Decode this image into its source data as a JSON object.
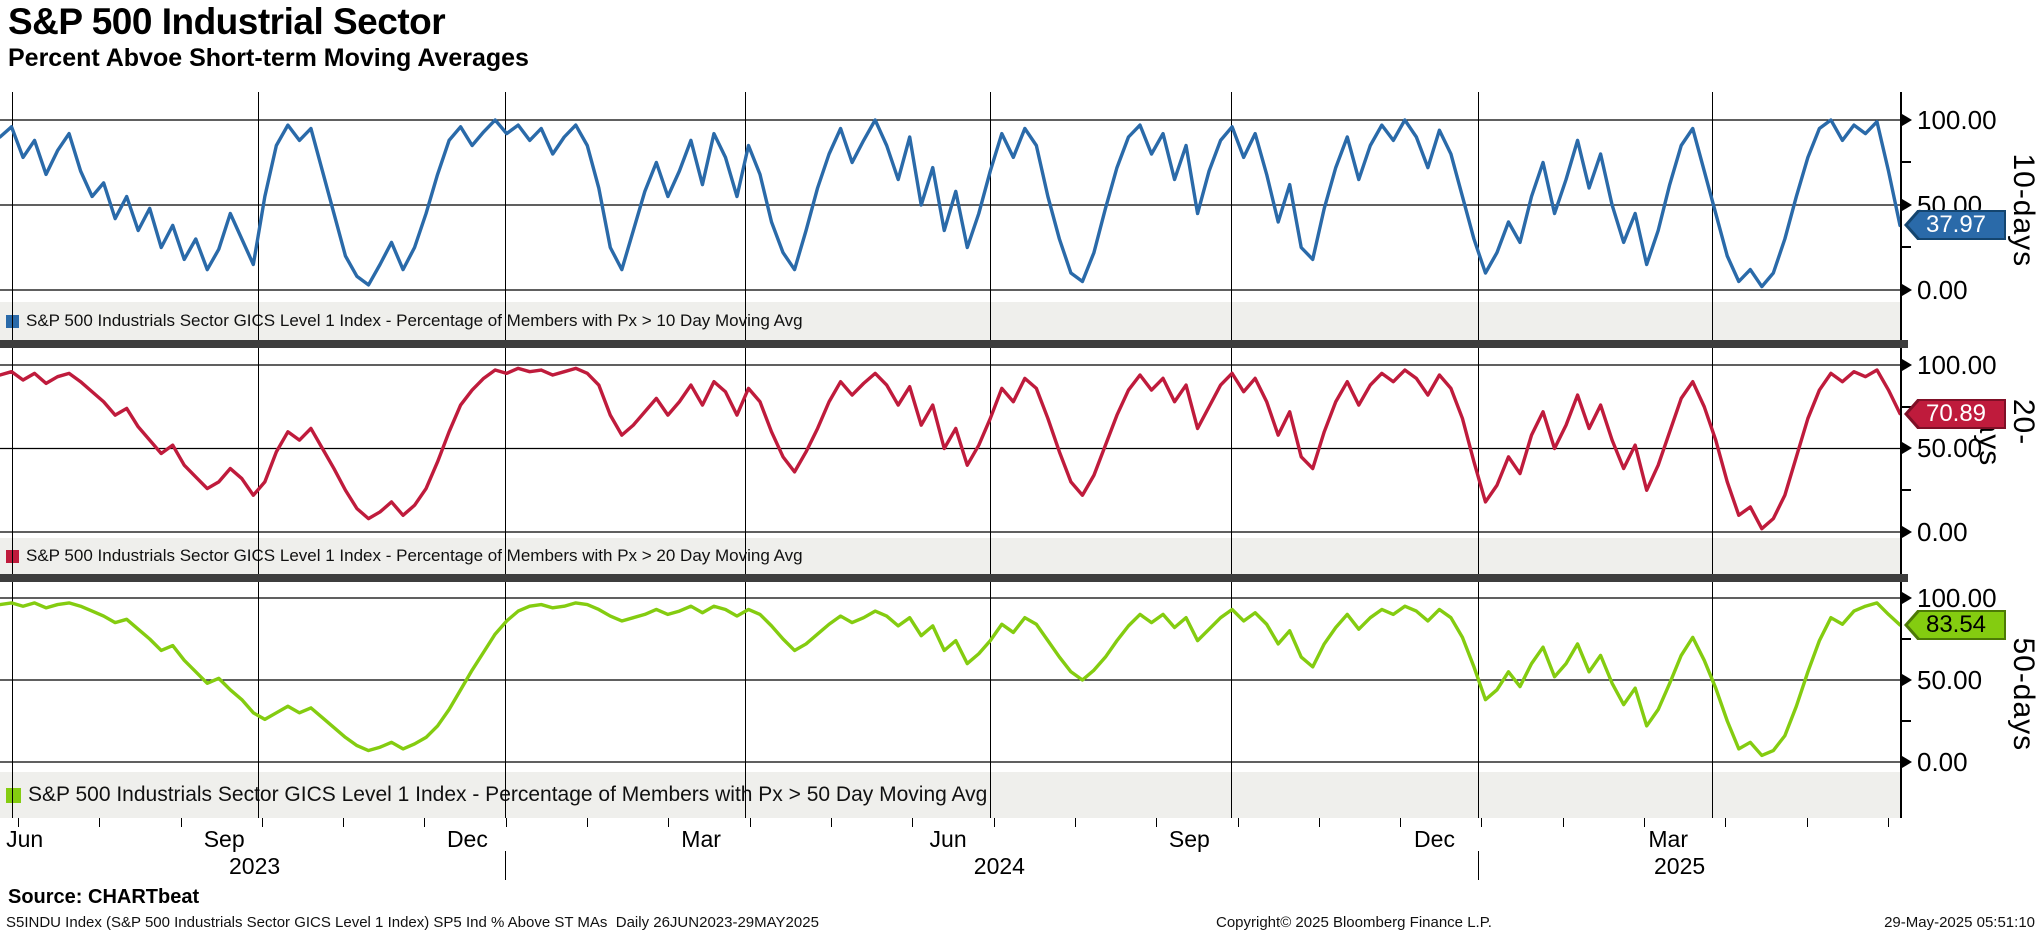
{
  "header": {
    "title": "S&P 500 Industrial Sector",
    "subtitle": "Percent Abvoe Short-term Moving Averages"
  },
  "chart_data": {
    "type": "line",
    "title": "S&P 500 Industrial Sector",
    "subtitle": "Percent Abvoe Short-term Moving Averages",
    "x_start": "26JUN2023",
    "x_end": "29MAY2025",
    "frequency": "Daily",
    "ylim": [
      0,
      100
    ],
    "y_tick_labels": [
      "100.00",
      "50.00",
      "0.00"
    ],
    "grid": true,
    "x_gridlines_pct": [
      13.6,
      26.6,
      39.2,
      52.1,
      64.8,
      77.8,
      90.1
    ],
    "panels": [
      {
        "name": "10-days",
        "legend": "S&P 500 Industrials Sector GICS Level 1 Index - Percentage of Members with Px > 10 Day Moving Avg",
        "color": "#2a6aa9",
        "badge_border": "#14456f",
        "badge_text_color": "#ffffff",
        "last_value": "37.97",
        "values": [
          90,
          96,
          78,
          88,
          68,
          82,
          92,
          70,
          55,
          63,
          42,
          55,
          35,
          48,
          25,
          38,
          18,
          30,
          12,
          24,
          45,
          30,
          15,
          55,
          85,
          97,
          88,
          95,
          70,
          45,
          20,
          8,
          3,
          15,
          28,
          12,
          25,
          45,
          68,
          88,
          96,
          85,
          93,
          100,
          92,
          97,
          88,
          95,
          80,
          90,
          97,
          85,
          60,
          25,
          12,
          35,
          58,
          75,
          55,
          70,
          88,
          62,
          92,
          78,
          55,
          85,
          68,
          40,
          22,
          12,
          35,
          60,
          80,
          95,
          75,
          88,
          100,
          85,
          65,
          90,
          50,
          72,
          35,
          58,
          25,
          45,
          70,
          92,
          78,
          95,
          85,
          55,
          30,
          10,
          5,
          22,
          48,
          72,
          90,
          97,
          80,
          92,
          65,
          85,
          45,
          70,
          88,
          96,
          78,
          92,
          68,
          40,
          62,
          25,
          18,
          48,
          72,
          90,
          65,
          85,
          97,
          88,
          100,
          90,
          72,
          94,
          80,
          55,
          30,
          10,
          22,
          40,
          28,
          55,
          75,
          45,
          65,
          88,
          60,
          80,
          50,
          28,
          45,
          15,
          35,
          62,
          85,
          95,
          70,
          45,
          20,
          5,
          12,
          2,
          10,
          30,
          55,
          78,
          95,
          100,
          88,
          97,
          92,
          99,
          70,
          37.97
        ]
      },
      {
        "name": "20-days",
        "legend": "S&P 500 Industrials Sector GICS Level 1 Index - Percentage of Members with Px > 20 Day Moving Avg",
        "color": "#bf1b3c",
        "badge_border": "#7e0f26",
        "badge_text_color": "#ffffff",
        "last_value": "70.89",
        "values": [
          94,
          96,
          91,
          95,
          89,
          93,
          95,
          90,
          84,
          78,
          70,
          74,
          63,
          55,
          47,
          52,
          40,
          33,
          26,
          30,
          38,
          32,
          22,
          30,
          48,
          60,
          55,
          62,
          50,
          38,
          25,
          14,
          8,
          12,
          18,
          10,
          16,
          26,
          42,
          60,
          76,
          85,
          92,
          97,
          95,
          98,
          96,
          97,
          94,
          96,
          98,
          95,
          88,
          70,
          58,
          64,
          72,
          80,
          70,
          78,
          88,
          76,
          90,
          84,
          70,
          86,
          78,
          60,
          45,
          36,
          48,
          62,
          78,
          90,
          82,
          89,
          95,
          88,
          76,
          87,
          64,
          76,
          50,
          62,
          40,
          52,
          68,
          86,
          78,
          92,
          86,
          68,
          48,
          30,
          22,
          34,
          52,
          70,
          85,
          94,
          85,
          92,
          78,
          88,
          62,
          75,
          88,
          95,
          84,
          92,
          78,
          58,
          72,
          45,
          38,
          60,
          78,
          90,
          76,
          88,
          95,
          90,
          97,
          92,
          82,
          94,
          86,
          68,
          42,
          18,
          28,
          45,
          35,
          58,
          72,
          50,
          64,
          82,
          62,
          76,
          55,
          38,
          52,
          25,
          40,
          60,
          80,
          90,
          75,
          55,
          30,
          10,
          15,
          2,
          8,
          22,
          45,
          68,
          85,
          95,
          90,
          96,
          93,
          97,
          85,
          70.89
        ]
      },
      {
        "name": "50-days",
        "legend": "S&P 500 Industrials Sector GICS Level 1 Index - Percentage of Members with Px > 50 Day Moving Avg",
        "color": "#84cc10",
        "badge_border": "#4c7a06",
        "badge_text_color": "#000000",
        "last_value": "83.54",
        "values": [
          96,
          97,
          95,
          97,
          94,
          96,
          97,
          95,
          92,
          89,
          85,
          87,
          81,
          75,
          68,
          71,
          62,
          55,
          48,
          51,
          44,
          38,
          30,
          26,
          30,
          34,
          30,
          33,
          27,
          21,
          15,
          10,
          7,
          9,
          12,
          8,
          11,
          15,
          22,
          32,
          44,
          56,
          67,
          78,
          86,
          92,
          95,
          96,
          94,
          95,
          97,
          96,
          93,
          89,
          86,
          88,
          90,
          93,
          90,
          92,
          95,
          91,
          95,
          93,
          89,
          93,
          90,
          83,
          75,
          68,
          72,
          78,
          84,
          89,
          85,
          88,
          92,
          89,
          83,
          88,
          77,
          83,
          68,
          74,
          60,
          66,
          74,
          84,
          79,
          88,
          84,
          74,
          64,
          55,
          50,
          56,
          64,
          74,
          83,
          90,
          85,
          90,
          82,
          88,
          74,
          81,
          88,
          93,
          86,
          91,
          84,
          72,
          80,
          64,
          58,
          72,
          82,
          90,
          81,
          88,
          93,
          90,
          95,
          92,
          86,
          93,
          88,
          76,
          58,
          38,
          44,
          55,
          46,
          60,
          70,
          52,
          60,
          72,
          55,
          65,
          48,
          35,
          45,
          22,
          32,
          48,
          65,
          76,
          62,
          45,
          25,
          8,
          12,
          4,
          7,
          16,
          34,
          55,
          74,
          88,
          84,
          92,
          95,
          97,
          90,
          83.54
        ]
      }
    ]
  },
  "xaxis": {
    "months": [
      {
        "label": "Jun",
        "pct": 1.3
      },
      {
        "label": "Sep",
        "pct": 11.8
      },
      {
        "label": "Dec",
        "pct": 24.6
      },
      {
        "label": "Mar",
        "pct": 36.9
      },
      {
        "label": "Jun",
        "pct": 49.9
      },
      {
        "label": "Sep",
        "pct": 62.6
      },
      {
        "label": "Dec",
        "pct": 75.5
      },
      {
        "label": "Mar",
        "pct": 87.8
      }
    ],
    "years": [
      {
        "label": "2023",
        "pct": 13.4
      },
      {
        "label": "2024",
        "pct": 52.6
      },
      {
        "label": "2025",
        "pct": 88.4
      }
    ],
    "year_dividers_pct": [
      26.6,
      77.8
    ]
  },
  "footer": {
    "source": "Source: CHARTbeat",
    "left": "S5INDU Index (S&P 500 Industrials Sector GICS Level 1 Index) SP5 Ind % Above ST MAs  Daily 26JUN2023-29MAY2025",
    "center": "Copyright© 2025 Bloomberg Finance L.P.",
    "right": "29-May-2025 05:51:10"
  }
}
